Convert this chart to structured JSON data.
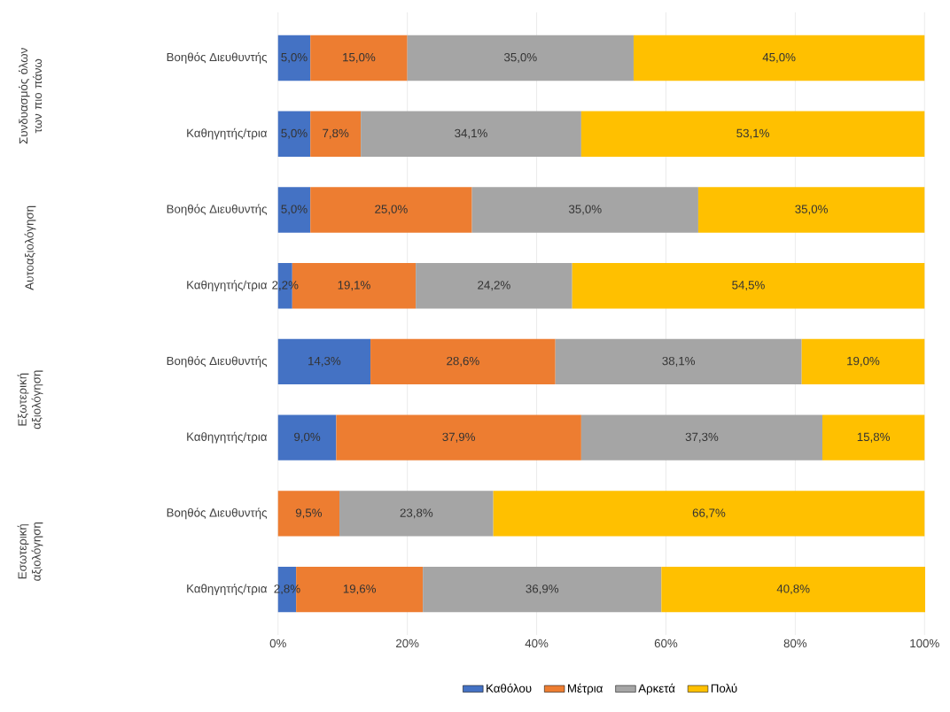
{
  "chart_data": {
    "type": "bar",
    "orientation": "horizontal",
    "stacked": true,
    "categories": [
      "Βοηθός Διευθυντής",
      "Καθηγητής/τρια",
      "Βοηθός Διευθυντής",
      "Καθηγητής/τρια",
      "Βοηθός Διευθυντής",
      "Καθηγητής/τρια",
      "Βοηθός Διευθυντής",
      "Καθηγητής/τρια"
    ],
    "series": [
      {
        "name": "Καθόλου",
        "color": "#4472c4",
        "values": [
          5.0,
          5.0,
          5.0,
          2.2,
          14.3,
          9.0,
          null,
          2.8
        ],
        "value_labels": [
          "5,0%",
          "5,0%",
          "5,0%",
          "2,2%",
          "14,3%",
          "9,0%",
          null,
          "2,8%"
        ]
      },
      {
        "name": "Μέτρια",
        "color": "#ed7d31",
        "values": [
          15.0,
          7.8,
          25.0,
          19.1,
          28.6,
          37.9,
          9.5,
          19.6
        ],
        "value_labels": [
          "15,0%",
          "7,8%",
          "25,0%",
          "19,1%",
          "28,6%",
          "37,9%",
          "9,5%",
          "19,6%"
        ]
      },
      {
        "name": "Αρκετά",
        "color": "#a5a5a5",
        "values": [
          35.0,
          34.1,
          35.0,
          24.2,
          38.1,
          37.3,
          23.8,
          36.9
        ],
        "value_labels": [
          "35,0%",
          "34,1%",
          "35,0%",
          "24,2%",
          "38,1%",
          "37,3%",
          "23,8%",
          "36,9%"
        ]
      },
      {
        "name": "Πολύ",
        "color": "#ffc000",
        "values": [
          45.0,
          53.1,
          35.0,
          54.5,
          19.0,
          15.8,
          66.7,
          40.8
        ],
        "value_labels": [
          "45,0%",
          "53,1%",
          "35,0%",
          "54,5%",
          "19,0%",
          "15,8%",
          "66,7%",
          "40,8%"
        ]
      }
    ],
    "xlim": [
      0,
      100
    ],
    "xticks": [
      {
        "value": 0,
        "label": "0%"
      },
      {
        "value": 20,
        "label": "20%"
      },
      {
        "value": 40,
        "label": "40%"
      },
      {
        "value": 60,
        "label": "60%"
      },
      {
        "value": 80,
        "label": "80%"
      },
      {
        "value": 100,
        "label": "100%"
      }
    ],
    "grid": "x",
    "legend": "bottom",
    "annotations": [
      "Συνδυασμός όλων των πιο πάνω",
      "Αυτοαξιολόγηση",
      "Εξωτερική αξιολόγηση",
      "Εσωτερική αξιολόγηση"
    ]
  }
}
